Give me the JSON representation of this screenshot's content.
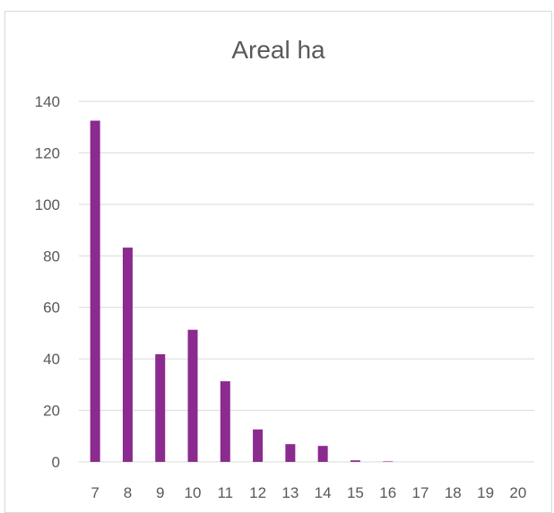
{
  "chart_data": {
    "type": "bar",
    "title": "Areal ha",
    "xlabel": "",
    "ylabel": "",
    "categories": [
      "7",
      "8",
      "9",
      "10",
      "11",
      "12",
      "13",
      "14",
      "15",
      "16",
      "17",
      "18",
      "19",
      "20"
    ],
    "values": [
      132.5,
      83.2,
      41.8,
      51.3,
      31.3,
      12.6,
      6.9,
      6.2,
      0.6,
      0.2,
      0,
      0,
      0,
      0
    ],
    "ylim": [
      0,
      140
    ],
    "yticks": [
      0,
      20,
      40,
      60,
      80,
      100,
      120,
      140
    ],
    "grid": true,
    "legend": "none",
    "colors": {
      "bar": "#8B2A8F",
      "grid": "#d9d9d9",
      "text": "#595959"
    }
  }
}
